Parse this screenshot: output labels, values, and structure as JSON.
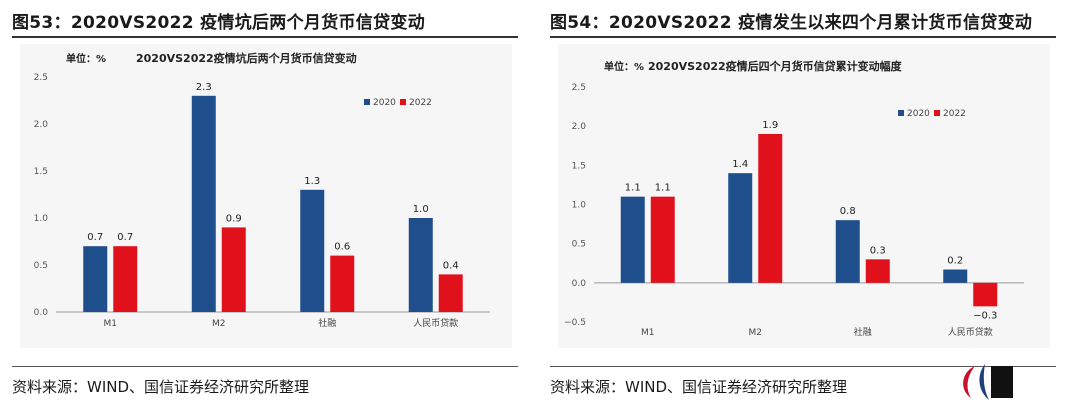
{
  "figures": [
    {
      "fig_title": "图53：2020VS2022 疫情坑后两个月货币信贷变动",
      "source": "资料来源：WIND、国信证券经济研究所整理",
      "chart_data": {
        "type": "bar",
        "unit_label": "单位：%",
        "title": "2020VS2022疫情坑后两个月货币信贷变动",
        "categories": [
          "M1",
          "M2",
          "社融",
          "人民币贷款"
        ],
        "series": [
          {
            "name": "2020",
            "values": [
              0.7,
              2.3,
              1.3,
              1.0
            ],
            "color": "#1f4e8c"
          },
          {
            "name": "2022",
            "values": [
              0.7,
              0.9,
              0.6,
              0.4
            ],
            "color": "#e0111b"
          }
        ],
        "labels": [
          [
            "0.7",
            "2.3",
            "1.3",
            "1.0"
          ],
          [
            "0.7",
            "0.9",
            "0.6",
            "0.4"
          ]
        ],
        "yticks": [
          "0.0",
          "0.5",
          "1.0",
          "1.5",
          "2.0",
          "2.5"
        ],
        "ylim": [
          0,
          2.5
        ],
        "legend": "top-right",
        "grid": false
      }
    },
    {
      "fig_title": "图54：2020VS2022 疫情发生以来四个月累计货币信贷变动",
      "source": "资料来源：WIND、国信证券经济研究所整理",
      "chart_data": {
        "type": "bar",
        "unit_label": "单位：%",
        "title": "2020VS2022疫情后四个月货币信贷累计变动幅度",
        "categories": [
          "M1",
          "M2",
          "社融",
          "人民币贷款"
        ],
        "series": [
          {
            "name": "2020",
            "values": [
              1.1,
              1.4,
              0.8,
              0.17
            ],
            "color": "#1f4e8c"
          },
          {
            "name": "2022",
            "values": [
              1.1,
              1.9,
              0.3,
              -0.3
            ],
            "color": "#e0111b"
          }
        ],
        "labels": [
          [
            "1.1",
            "1.4",
            "0.8",
            "0.2"
          ],
          [
            "1.1",
            "1.9",
            "0.3",
            "−0.3"
          ]
        ],
        "yticks": [
          "−0.5",
          "0.0",
          "0.5",
          "1.0",
          "1.5",
          "2.0",
          "2.5"
        ],
        "ylim": [
          -0.5,
          2.5
        ],
        "legend": "top-right",
        "grid": false
      }
    }
  ]
}
